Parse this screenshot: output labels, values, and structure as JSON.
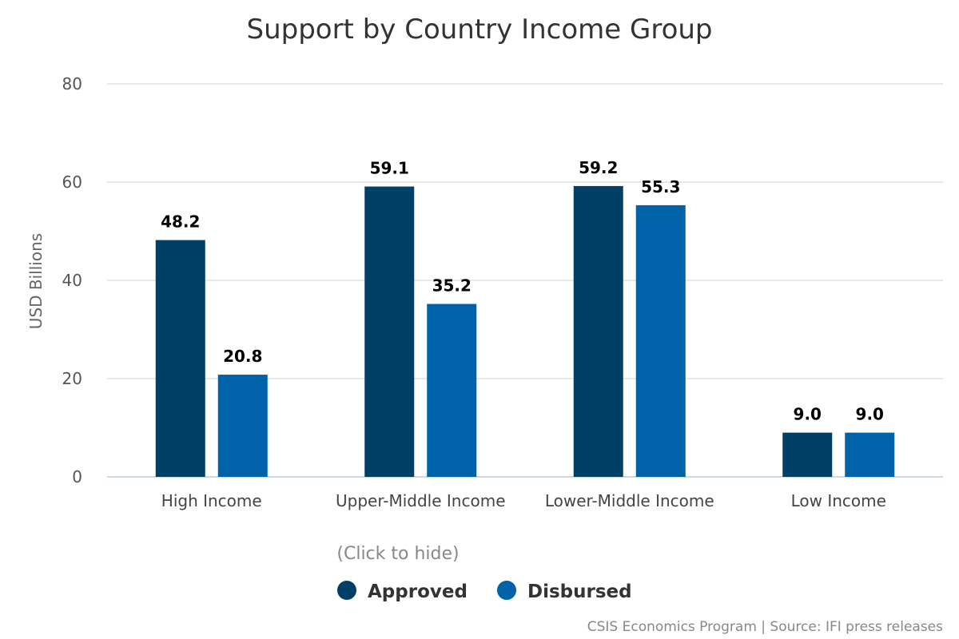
{
  "chart_data": {
    "type": "bar",
    "title": "Support by Country Income Group",
    "ylabel": "USD Billions",
    "xlabel": "",
    "ylim": [
      0,
      80
    ],
    "yticks": [
      0,
      20,
      40,
      60,
      80
    ],
    "categories": [
      "High Income",
      "Upper-Middle Income",
      "Lower-Middle Income",
      "Low Income"
    ],
    "series": [
      {
        "name": "Approved",
        "color": "#003f66",
        "values": [
          48.2,
          59.1,
          59.2,
          9.0
        ],
        "labels": [
          "48.2",
          "59.1",
          "59.2",
          "9.0"
        ]
      },
      {
        "name": "Disbursed",
        "color": "#0062a8",
        "values": [
          20.8,
          35.2,
          55.3,
          9.0
        ],
        "labels": [
          "20.8",
          "35.2",
          "55.3",
          "9.0"
        ]
      }
    ],
    "grid": true,
    "legend_position": "bottom-center"
  },
  "legend": {
    "hint": "(Click to hide)"
  },
  "credits": "CSIS Economics Program | Source: IFI press releases"
}
